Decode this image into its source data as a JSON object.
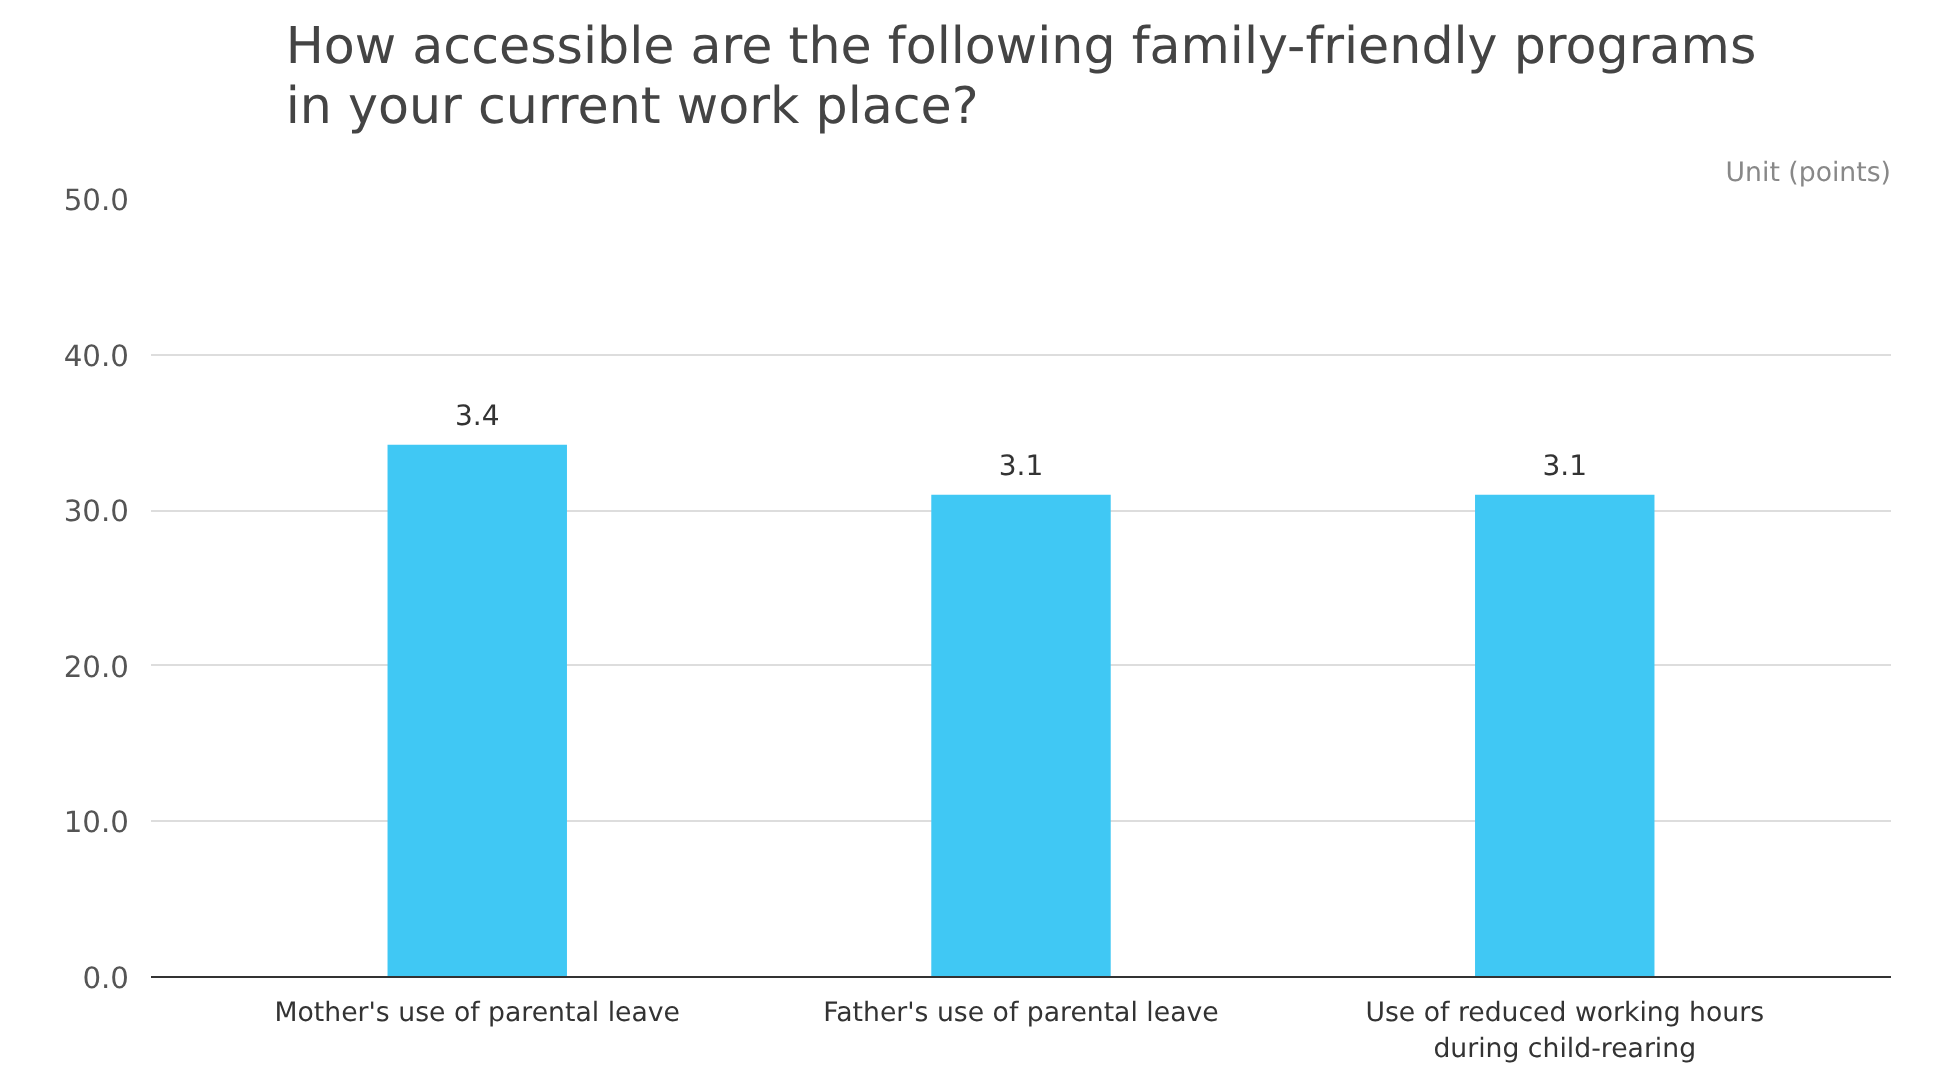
{
  "chart_data": {
    "type": "bar",
    "title": "How accessible are the following family-friendly programs\nin your current work place?",
    "categories": [
      "Mother's use of parental leave",
      "Father's use of parental leave",
      "Use of reduced working hours\nduring child-rearing"
    ],
    "values": [
      34.2,
      31.0,
      31.0
    ],
    "color": "#40c8f4",
    "ylim": [
      0,
      50
    ],
    "yticks": [
      {
        "value": 0,
        "label": "0.0"
      },
      {
        "value": 10,
        "label": "10.0"
      },
      {
        "value": 20,
        "label": "20.0"
      },
      {
        "value": 30,
        "label": "30.0"
      },
      {
        "value": 40,
        "label": "40.0"
      },
      {
        "value": 50,
        "label": "50.0"
      }
    ],
    "grid": "y",
    "annotations": [
      "Unit (points)",
      {
        "text": "3.4",
        "x": "Mother's use of parental leave",
        "y": 34.2
      },
      {
        "text": "3.1",
        "x": "Father's use of parental leave",
        "y": 31.0
      },
      {
        "text": "3.1",
        "x": "Use of reduced working hours\nduring child-rearing",
        "y": 31.0
      }
    ]
  }
}
